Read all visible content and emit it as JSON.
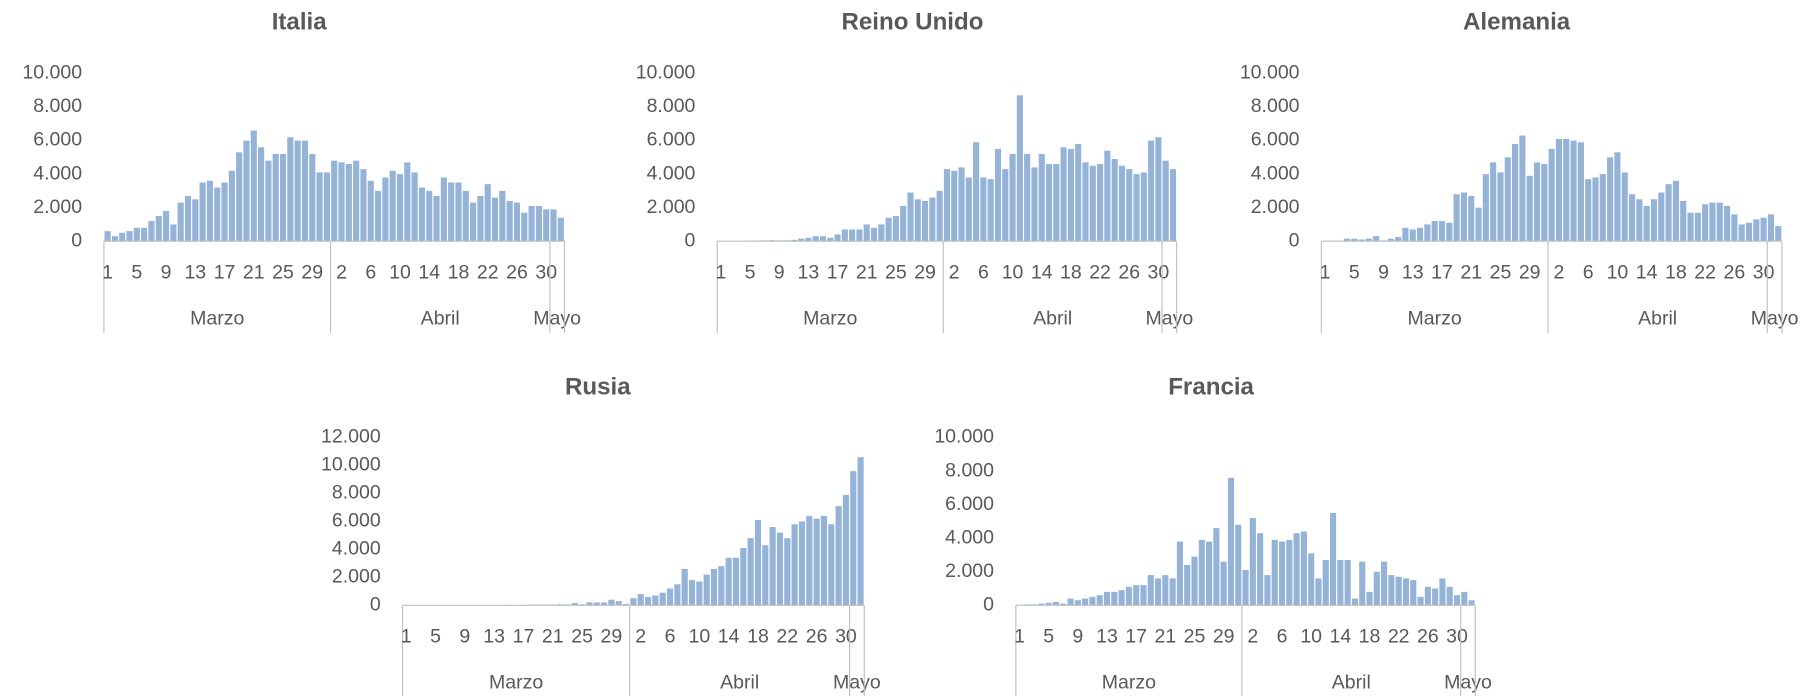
{
  "chart_data": [
    {
      "type": "bar",
      "title": "Italia",
      "color": "#95b3d7",
      "ylim": [
        0,
        10000
      ],
      "yticks": [
        0,
        {
          "value": 2000,
          "label": "2.000"
        },
        {
          "value": 4000,
          "label": "4.000"
        },
        {
          "value": 6000,
          "label": "6.000"
        },
        {
          "value": 8000,
          "label": "8.000"
        },
        {
          "value": 10000,
          "label": "10.000"
        }
      ],
      "groups": [
        {
          "label": "Marzo",
          "categories": [
            "1",
            null,
            null,
            null,
            "5",
            null,
            null,
            null,
            "9",
            null,
            null,
            null,
            "13",
            null,
            null,
            null,
            "17",
            null,
            null,
            null,
            "21",
            null,
            null,
            null,
            "25",
            null,
            null,
            null,
            "29",
            null,
            null
          ]
        },
        {
          "label": "Abril",
          "categories": [
            null,
            "2",
            null,
            null,
            null,
            "6",
            null,
            null,
            null,
            "10",
            null,
            null,
            null,
            "14",
            null,
            null,
            null,
            "18",
            null,
            null,
            null,
            "22",
            null,
            null,
            null,
            "26",
            null,
            null,
            null,
            "30"
          ]
        },
        {
          "label": "Mayo",
          "categories": [
            null,
            null
          ]
        }
      ],
      "values": [
        600,
        300,
        500,
        600,
        800,
        800,
        1200,
        1500,
        1800,
        1000,
        2300,
        2700,
        2500,
        3500,
        3600,
        3200,
        3500,
        4200,
        5300,
        6000,
        6600,
        5600,
        4800,
        5200,
        5200,
        6200,
        6000,
        6000,
        5200,
        4100,
        4100,
        4800,
        4700,
        4600,
        4800,
        4300,
        3600,
        3000,
        3800,
        4200,
        4000,
        4700,
        4100,
        3200,
        3000,
        2700,
        3800,
        3500,
        3500,
        3000,
        2300,
        2700,
        3400,
        2600,
        3000,
        2400,
        2300,
        1700,
        2100,
        2100,
        1900,
        1900,
        1400
      ]
    },
    {
      "type": "bar",
      "title": "Reino Unido",
      "color": "#95b3d7",
      "ylim": [
        0,
        10000
      ],
      "yticks": [
        0,
        {
          "value": 2000,
          "label": "2.000"
        },
        {
          "value": 4000,
          "label": "4.000"
        },
        {
          "value": 6000,
          "label": "6.000"
        },
        {
          "value": 8000,
          "label": "8.000"
        },
        {
          "value": 10000,
          "label": "10.000"
        }
      ],
      "groups": [
        {
          "label": "Marzo",
          "categories": [
            "1",
            null,
            null,
            null,
            "5",
            null,
            null,
            null,
            "9",
            null,
            null,
            null,
            "13",
            null,
            null,
            null,
            "17",
            null,
            null,
            null,
            "21",
            null,
            null,
            null,
            "25",
            null,
            null,
            null,
            "29",
            null,
            null
          ]
        },
        {
          "label": "Abril",
          "categories": [
            null,
            "2",
            null,
            null,
            null,
            "6",
            null,
            null,
            null,
            "10",
            null,
            null,
            null,
            "14",
            null,
            null,
            null,
            "18",
            null,
            null,
            null,
            "22",
            null,
            null,
            null,
            "26",
            null,
            null,
            null,
            "30"
          ]
        },
        {
          "label": "Mayo",
          "categories": [
            null,
            null
          ]
        }
      ],
      "values": [
        10,
        10,
        20,
        20,
        30,
        40,
        50,
        60,
        50,
        50,
        80,
        150,
        200,
        300,
        300,
        200,
        400,
        700,
        700,
        700,
        1000,
        800,
        1000,
        1400,
        1500,
        2100,
        2900,
        2500,
        2400,
        2600,
        3000,
        4300,
        4200,
        4400,
        3800,
        5900,
        3800,
        3700,
        5500,
        4300,
        5200,
        8700,
        5200,
        4400,
        5200,
        4600,
        4600,
        5600,
        5500,
        5800,
        4700,
        4500,
        4600,
        5400,
        4900,
        4500,
        4300,
        4000,
        4100,
        6000,
        6200,
        4800,
        4300
      ]
    },
    {
      "type": "bar",
      "title": "Alemania",
      "color": "#95b3d7",
      "ylim": [
        0,
        10000
      ],
      "yticks": [
        0,
        {
          "value": 2000,
          "label": "2.000"
        },
        {
          "value": 4000,
          "label": "4.000"
        },
        {
          "value": 6000,
          "label": "6.000"
        },
        {
          "value": 8000,
          "label": "8.000"
        },
        {
          "value": 10000,
          "label": "10.000"
        }
      ],
      "groups": [
        {
          "label": "Marzo",
          "categories": [
            "1",
            null,
            null,
            null,
            "5",
            null,
            null,
            null,
            "9",
            null,
            null,
            null,
            "13",
            null,
            null,
            null,
            "17",
            null,
            null,
            null,
            "21",
            null,
            null,
            null,
            "25",
            null,
            null,
            null,
            "29",
            null,
            null
          ]
        },
        {
          "label": "Abril",
          "categories": [
            null,
            "2",
            null,
            null,
            null,
            "6",
            null,
            null,
            null,
            "10",
            null,
            null,
            null,
            "14",
            null,
            null,
            null,
            "18",
            null,
            null,
            null,
            "22",
            null,
            null,
            null,
            "26",
            null,
            null,
            null,
            "30"
          ]
        },
        {
          "label": "Mayo",
          "categories": [
            null,
            null
          ]
        }
      ],
      "values": [
        0,
        30,
        30,
        150,
        150,
        100,
        150,
        300,
        50,
        150,
        250,
        800,
        700,
        800,
        1000,
        1200,
        1200,
        1100,
        2800,
        2900,
        2700,
        2000,
        4000,
        4700,
        4100,
        5000,
        5800,
        6300,
        3900,
        4700,
        4600,
        5500,
        6100,
        6100,
        6000,
        5900,
        3700,
        3800,
        4000,
        5000,
        5300,
        4100,
        2800,
        2500,
        2100,
        2500,
        2900,
        3400,
        3600,
        2400,
        1700,
        1700,
        2200,
        2300,
        2300,
        2100,
        1600,
        1000,
        1100,
        1300,
        1400,
        1600,
        900
      ]
    },
    {
      "type": "bar",
      "title": "Rusia",
      "color": "#95b3d7",
      "ylim": [
        0,
        12000
      ],
      "yticks": [
        0,
        {
          "value": 2000,
          "label": "2.000"
        },
        {
          "value": 4000,
          "label": "4.000"
        },
        {
          "value": 6000,
          "label": "6.000"
        },
        {
          "value": 8000,
          "label": "8.000"
        },
        {
          "value": 10000,
          "label": "10.000"
        },
        {
          "value": 12000,
          "label": "12.000"
        }
      ],
      "groups": [
        {
          "label": "Marzo",
          "categories": [
            "1",
            null,
            null,
            null,
            "5",
            null,
            null,
            null,
            "9",
            null,
            null,
            null,
            "13",
            null,
            null,
            null,
            "17",
            null,
            null,
            null,
            "21",
            null,
            null,
            null,
            "25",
            null,
            null,
            null,
            "29",
            null,
            null
          ]
        },
        {
          "label": "Abril",
          "categories": [
            null,
            "2",
            null,
            null,
            null,
            "6",
            null,
            null,
            null,
            "10",
            null,
            null,
            null,
            "14",
            null,
            null,
            null,
            "18",
            null,
            null,
            null,
            "22",
            null,
            null,
            null,
            "26",
            null,
            null,
            null,
            "30"
          ]
        },
        {
          "label": "Mayo",
          "categories": [
            null,
            null
          ]
        }
      ],
      "values": [
        0,
        0,
        0,
        0,
        0,
        0,
        0,
        0,
        0,
        0,
        10,
        10,
        20,
        20,
        30,
        10,
        30,
        50,
        50,
        50,
        50,
        70,
        60,
        150,
        70,
        200,
        200,
        200,
        400,
        300,
        100,
        500,
        800,
        600,
        700,
        900,
        1200,
        1500,
        2600,
        1800,
        1700,
        2200,
        2600,
        2800,
        3400,
        3400,
        4100,
        4800,
        6100,
        4300,
        5600,
        5200,
        4800,
        5800,
        6000,
        6400,
        6200,
        6400,
        5800,
        7100,
        7900,
        9600,
        10600
      ]
    },
    {
      "type": "bar",
      "title": "Francia",
      "color": "#95b3d7",
      "ylim": [
        0,
        10000
      ],
      "yticks": [
        0,
        {
          "value": 2000,
          "label": "2.000"
        },
        {
          "value": 4000,
          "label": "4.000"
        },
        {
          "value": 6000,
          "label": "6.000"
        },
        {
          "value": 8000,
          "label": "8.000"
        },
        {
          "value": 10000,
          "label": "10.000"
        }
      ],
      "groups": [
        {
          "label": "Marzo",
          "categories": [
            "1",
            null,
            null,
            null,
            "5",
            null,
            null,
            null,
            "9",
            null,
            null,
            null,
            "13",
            null,
            null,
            null,
            "17",
            null,
            null,
            null,
            "21",
            null,
            null,
            null,
            "25",
            null,
            null,
            null,
            "29",
            null,
            null
          ]
        },
        {
          "label": "Abril",
          "categories": [
            null,
            "2",
            null,
            null,
            null,
            "6",
            null,
            null,
            null,
            "10",
            null,
            null,
            null,
            "14",
            null,
            null,
            null,
            "18",
            null,
            null,
            null,
            "22",
            null,
            null,
            null,
            "26",
            null,
            null,
            null,
            "30"
          ]
        },
        {
          "label": "Mayo",
          "categories": [
            null,
            null
          ]
        }
      ],
      "values": [
        30,
        50,
        50,
        100,
        150,
        200,
        100,
        400,
        300,
        400,
        500,
        600,
        800,
        800,
        900,
        1100,
        1200,
        1200,
        1800,
        1600,
        1800,
        1600,
        3800,
        2400,
        2900,
        3900,
        3800,
        4600,
        2600,
        7600,
        4800,
        2100,
        5200,
        4300,
        1800,
        3900,
        3800,
        3900,
        4300,
        4400,
        3100,
        1600,
        2700,
        5500,
        2700,
        2700,
        400,
        2600,
        800,
        2000,
        2600,
        1800,
        1700,
        1600,
        1500,
        500,
        1100,
        1000,
        1600,
        1100,
        600,
        800,
        300
      ]
    }
  ]
}
